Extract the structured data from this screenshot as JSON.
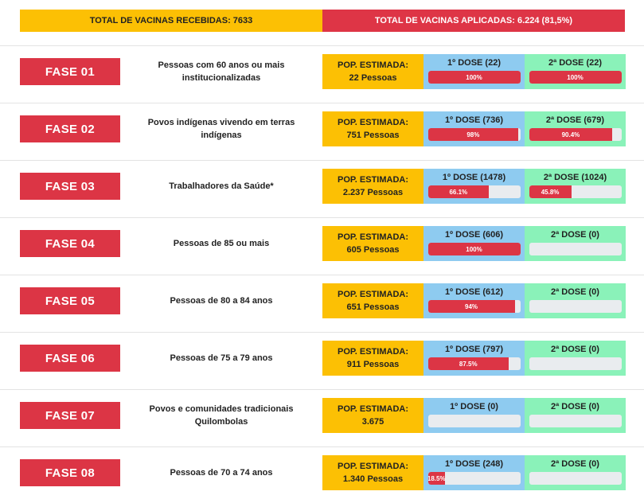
{
  "header": {
    "received_label": "TOTAL DE VACINAS RECEBIDAS: 7633",
    "applied_label": "TOTAL DE VACINAS APLICADAS: 6.224 (81,5%)"
  },
  "colors": {
    "received_bg": "#fcc004",
    "applied_bg": "#de3546",
    "phase_badge": "#dc3545",
    "dose1_bg": "#8ecbf0",
    "dose2_bg": "#8af2b9",
    "progress_fill": "#dc3545",
    "progress_track": "#e9ecef"
  },
  "phases": [
    {
      "label": "FASE 01",
      "description": "Pessoas com 60 anos ou mais institucionalizadas",
      "pop_title": "POP. ESTIMADA:",
      "pop_value": "22 Pessoas",
      "dose1": {
        "label": "1º DOSE (22)",
        "progress": 100,
        "progress_text": "100%"
      },
      "dose2": {
        "label": "2ª DOSE (22)",
        "progress": 100,
        "progress_text": "100%"
      }
    },
    {
      "label": "FASE 02",
      "description": "Povos indígenas vivendo em terras indígenas",
      "pop_title": "POP. ESTIMADA:",
      "pop_value": "751 Pessoas",
      "dose1": {
        "label": "1º DOSE (736)",
        "progress": 98,
        "progress_text": "98%"
      },
      "dose2": {
        "label": "2ª DOSE (679)",
        "progress": 90.4,
        "progress_text": "90.4%"
      }
    },
    {
      "label": "FASE 03",
      "description": "Trabalhadores da Saúde*",
      "pop_title": "POP. ESTIMADA:",
      "pop_value": "2.237 Pessoas",
      "dose1": {
        "label": "1º DOSE (1478)",
        "progress": 66.1,
        "progress_text": "66.1%"
      },
      "dose2": {
        "label": "2ª DOSE (1024)",
        "progress": 45.8,
        "progress_text": "45.8%"
      }
    },
    {
      "label": "FASE 04",
      "description": "Pessoas de 85 ou mais",
      "pop_title": "POP. ESTIMADA:",
      "pop_value": "605 Pessoas",
      "dose1": {
        "label": "1º DOSE (606)",
        "progress": 100,
        "progress_text": "100%"
      },
      "dose2": {
        "label": "2ª DOSE (0)",
        "progress": 0,
        "progress_text": ""
      }
    },
    {
      "label": "FASE 05",
      "description": "Pessoas de 80 a 84 anos",
      "pop_title": "POP. ESTIMADA:",
      "pop_value": "651 Pessoas",
      "dose1": {
        "label": "1º DOSE (612)",
        "progress": 94,
        "progress_text": "94%"
      },
      "dose2": {
        "label": "2ª DOSE (0)",
        "progress": 0,
        "progress_text": ""
      }
    },
    {
      "label": "FASE 06",
      "description": "Pessoas de 75 a 79 anos",
      "pop_title": "POP. ESTIMADA:",
      "pop_value": "911 Pessoas",
      "dose1": {
        "label": "1º DOSE (797)",
        "progress": 87.5,
        "progress_text": "87.5%"
      },
      "dose2": {
        "label": "2ª DOSE (0)",
        "progress": 0,
        "progress_text": ""
      }
    },
    {
      "label": "FASE 07",
      "description": "Povos e comunidades tradicionais Quilombolas",
      "pop_title": "POP. ESTIMADA:",
      "pop_value": "3.675",
      "dose1": {
        "label": "1º DOSE (0)",
        "progress": 0,
        "progress_text": ""
      },
      "dose2": {
        "label": "2ª DOSE (0)",
        "progress": 0,
        "progress_text": ""
      }
    },
    {
      "label": "FASE 08",
      "description": "Pessoas de 70 a 74 anos",
      "pop_title": "POP. ESTIMADA:",
      "pop_value": "1.340 Pessoas",
      "dose1": {
        "label": "1º DOSE (248)",
        "progress": 18.5,
        "progress_text": "18.5%"
      },
      "dose2": {
        "label": "2ª DOSE (0)",
        "progress": 0,
        "progress_text": ""
      }
    }
  ]
}
